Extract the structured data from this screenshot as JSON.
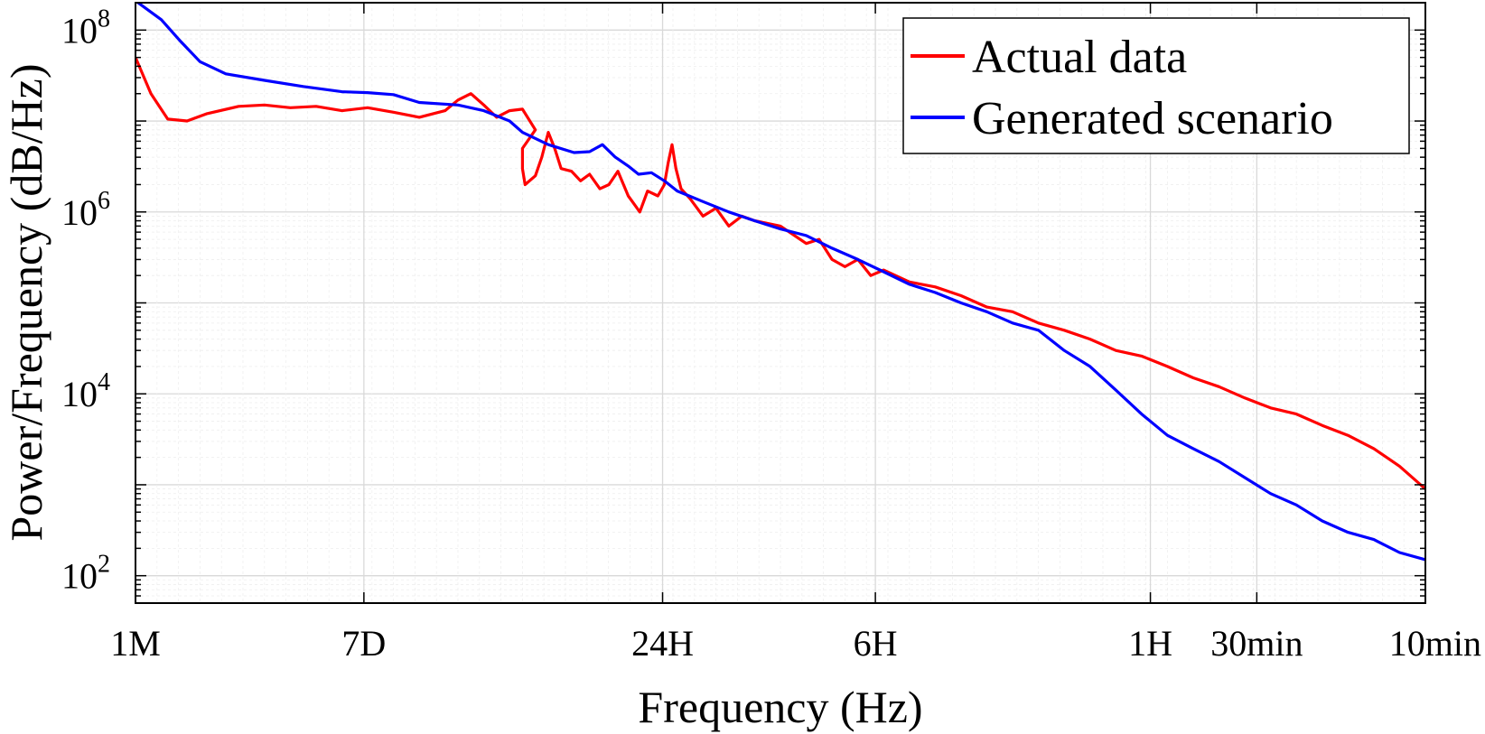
{
  "chart_data": {
    "type": "line",
    "title": "",
    "xlabel": "Frequency (Hz)",
    "ylabel": "Power/Frequency (dB/Hz)",
    "x_scale": "log",
    "y_scale": "log",
    "x_period_range_hours": [
      744,
      0.1667
    ],
    "ylim": [
      50,
      200000000
    ],
    "grid": true,
    "minor_grid": true,
    "legend_position": "top-right",
    "x_ticks": [
      {
        "label": "1M",
        "period_hours": 744
      },
      {
        "label": "7D",
        "period_hours": 168
      },
      {
        "label": "24H",
        "period_hours": 24
      },
      {
        "label": "6H",
        "period_hours": 6
      },
      {
        "label": "1H",
        "period_hours": 1
      },
      {
        "label": "30min",
        "period_hours": 0.5
      },
      {
        "label": "10min",
        "period_hours": 0.1667
      }
    ],
    "y_ticks": [
      {
        "base": "10",
        "exp": "2",
        "value": 100
      },
      {
        "base": "10",
        "exp": "4",
        "value": 10000
      },
      {
        "base": "10",
        "exp": "6",
        "value": 1000000
      },
      {
        "base": "10",
        "exp": "8",
        "value": 100000000
      }
    ],
    "series": [
      {
        "name": "Actual data",
        "color": "#ff0000",
        "points": [
          [
            0,
            50000000
          ],
          [
            0.012,
            20000000
          ],
          [
            0.025,
            10500000
          ],
          [
            0.04,
            10000000
          ],
          [
            0.055,
            12000000
          ],
          [
            0.08,
            14500000
          ],
          [
            0.1,
            15000000
          ],
          [
            0.12,
            14000000
          ],
          [
            0.14,
            14500000
          ],
          [
            0.16,
            13000000
          ],
          [
            0.18,
            14000000
          ],
          [
            0.2,
            12500000
          ],
          [
            0.22,
            11000000
          ],
          [
            0.24,
            13000000
          ],
          [
            0.25,
            17000000
          ],
          [
            0.26,
            20000000
          ],
          [
            0.27,
            15000000
          ],
          [
            0.28,
            11000000
          ],
          [
            0.29,
            13000000
          ],
          [
            0.3,
            13500000
          ],
          [
            0.31,
            8000000
          ],
          [
            0.3,
            5000000
          ],
          [
            0.3,
            3000000
          ],
          [
            0.302,
            2000000
          ],
          [
            0.31,
            2500000
          ],
          [
            0.315,
            4000000
          ],
          [
            0.32,
            7500000
          ],
          [
            0.325,
            5000000
          ],
          [
            0.33,
            3000000
          ],
          [
            0.338,
            2800000
          ],
          [
            0.345,
            2200000
          ],
          [
            0.352,
            2600000
          ],
          [
            0.36,
            1800000
          ],
          [
            0.367,
            2000000
          ],
          [
            0.374,
            2800000
          ],
          [
            0.382,
            1500000
          ],
          [
            0.387,
            1200000
          ],
          [
            0.391,
            1000000
          ],
          [
            0.397,
            1700000
          ],
          [
            0.405,
            1500000
          ],
          [
            0.41,
            2000000
          ],
          [
            0.413,
            3500000
          ],
          [
            0.416,
            5500000
          ],
          [
            0.419,
            3000000
          ],
          [
            0.423,
            1800000
          ],
          [
            0.43,
            1400000
          ],
          [
            0.44,
            900000
          ],
          [
            0.45,
            1100000
          ],
          [
            0.46,
            700000
          ],
          [
            0.47,
            900000
          ],
          [
            0.48,
            800000
          ],
          [
            0.5,
            700000
          ],
          [
            0.52,
            450000
          ],
          [
            0.53,
            500000
          ],
          [
            0.54,
            300000
          ],
          [
            0.55,
            250000
          ],
          [
            0.56,
            300000
          ],
          [
            0.57,
            200000
          ],
          [
            0.58,
            230000
          ],
          [
            0.6,
            170000
          ],
          [
            0.62,
            150000
          ],
          [
            0.64,
            120000
          ],
          [
            0.66,
            90000
          ],
          [
            0.68,
            80000
          ],
          [
            0.7,
            60000
          ],
          [
            0.72,
            50000
          ],
          [
            0.74,
            40000
          ],
          [
            0.76,
            30000
          ],
          [
            0.78,
            26000
          ],
          [
            0.8,
            20000
          ],
          [
            0.82,
            15000
          ],
          [
            0.84,
            12000
          ],
          [
            0.86,
            9000
          ],
          [
            0.88,
            7000
          ],
          [
            0.9,
            6000
          ],
          [
            0.92,
            4500
          ],
          [
            0.94,
            3500
          ],
          [
            0.96,
            2500
          ],
          [
            0.98,
            1600
          ],
          [
            1.0,
            900
          ]
        ]
      },
      {
        "name": "Generated scenario",
        "color": "#0000ff",
        "points": [
          [
            0,
            210000000
          ],
          [
            0.02,
            130000000
          ],
          [
            0.035,
            75000000
          ],
          [
            0.05,
            45000000
          ],
          [
            0.07,
            33000000
          ],
          [
            0.1,
            28000000
          ],
          [
            0.13,
            24000000
          ],
          [
            0.16,
            21000000
          ],
          [
            0.18,
            20500000
          ],
          [
            0.2,
            19500000
          ],
          [
            0.22,
            16000000
          ],
          [
            0.25,
            15000000
          ],
          [
            0.27,
            13000000
          ],
          [
            0.29,
            10000000
          ],
          [
            0.3,
            7500000
          ],
          [
            0.32,
            5500000
          ],
          [
            0.34,
            4500000
          ],
          [
            0.352,
            4600000
          ],
          [
            0.362,
            5500000
          ],
          [
            0.372,
            4000000
          ],
          [
            0.382,
            3200000
          ],
          [
            0.39,
            2600000
          ],
          [
            0.4,
            2700000
          ],
          [
            0.41,
            2200000
          ],
          [
            0.42,
            1700000
          ],
          [
            0.44,
            1300000
          ],
          [
            0.46,
            1000000
          ],
          [
            0.48,
            800000
          ],
          [
            0.5,
            650000
          ],
          [
            0.52,
            550000
          ],
          [
            0.54,
            400000
          ],
          [
            0.56,
            300000
          ],
          [
            0.58,
            220000
          ],
          [
            0.6,
            160000
          ],
          [
            0.62,
            130000
          ],
          [
            0.64,
            100000
          ],
          [
            0.66,
            80000
          ],
          [
            0.68,
            60000
          ],
          [
            0.7,
            50000
          ],
          [
            0.72,
            30000
          ],
          [
            0.74,
            20000
          ],
          [
            0.76,
            11000
          ],
          [
            0.78,
            6000
          ],
          [
            0.8,
            3500
          ],
          [
            0.82,
            2500
          ],
          [
            0.84,
            1800
          ],
          [
            0.86,
            1200
          ],
          [
            0.88,
            800
          ],
          [
            0.9,
            600
          ],
          [
            0.92,
            400
          ],
          [
            0.94,
            300
          ],
          [
            0.96,
            250
          ],
          [
            0.98,
            180
          ],
          [
            1.0,
            150
          ]
        ]
      }
    ]
  }
}
